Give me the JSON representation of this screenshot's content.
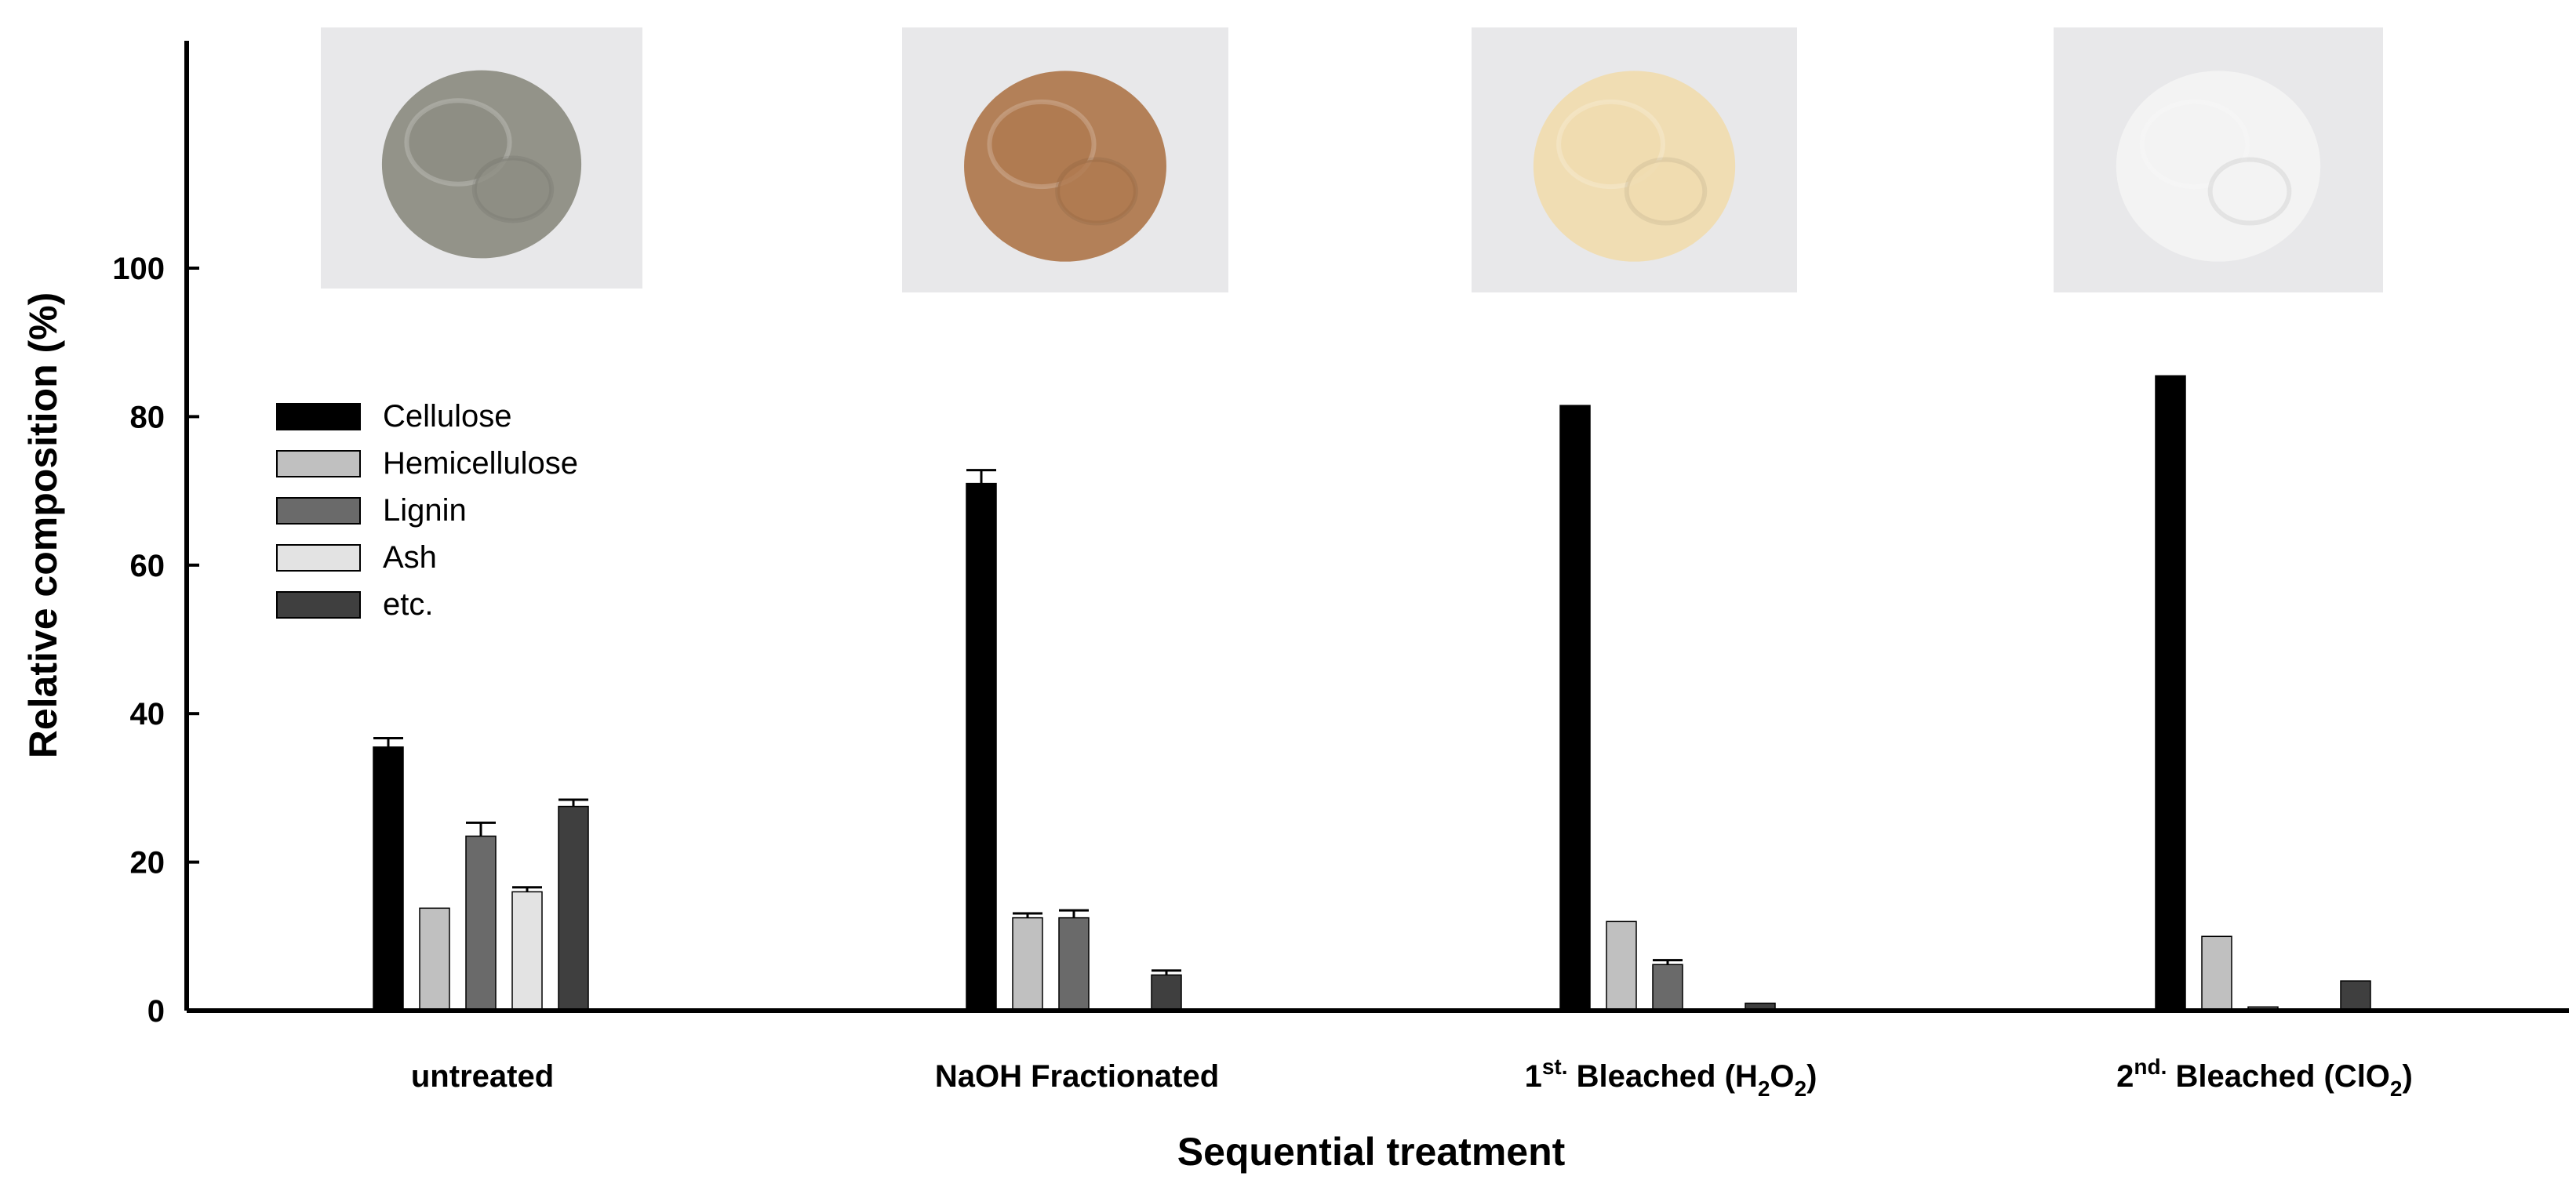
{
  "chart_data": {
    "type": "bar",
    "xlabel": "Sequential treatment",
    "ylabel": "Relative composition (%)",
    "ylim": [
      0,
      100
    ],
    "yticks": [
      "0",
      "20",
      "40",
      "60",
      "80",
      "100"
    ],
    "grid": false,
    "legend_placement": "top-left",
    "categories": [
      {
        "main": "untreated",
        "sup": "",
        "mid": "",
        "sub": "",
        "end": ""
      },
      {
        "main": "NaOH Fractionated",
        "sup": "",
        "mid": "",
        "sub": "",
        "end": ""
      },
      {
        "main": "1",
        "sup": "st.",
        "mid": " Bleached (H",
        "sub": "2",
        "mid2": "O",
        "sub2": "2",
        "end": ")"
      },
      {
        "main": "2",
        "sup": "nd.",
        "mid": " Bleached (ClO",
        "sub": "2",
        "mid2": "",
        "sub2": "",
        "end": ")"
      }
    ],
    "series": [
      {
        "name": "Cellulose",
        "color": "#000000",
        "values": [
          35.5,
          71.0,
          81.5,
          85.5
        ],
        "errors": [
          1.2,
          1.8,
          0,
          0
        ]
      },
      {
        "name": "Hemicellulose",
        "color": "#c0c0c0",
        "values": [
          13.8,
          12.5,
          12.0,
          10.0
        ],
        "errors": [
          0,
          0.6,
          0,
          0
        ]
      },
      {
        "name": "Lignin",
        "color": "#6a6a6a",
        "values": [
          23.5,
          12.5,
          6.2,
          0.5
        ],
        "errors": [
          1.8,
          1.0,
          0.6,
          0
        ]
      },
      {
        "name": "Ash",
        "color": "#e3e3e3",
        "values": [
          16.0,
          0,
          0,
          0
        ],
        "errors": [
          0.6,
          0,
          0,
          0
        ]
      },
      {
        "name": "etc.",
        "color": "#3f3f3f",
        "values": [
          27.5,
          4.8,
          1.0,
          4.0
        ],
        "errors": [
          0.9,
          0.6,
          0,
          0
        ]
      }
    ],
    "images": [
      {
        "name": "untreated-sample-photo",
        "color": "#8e8e84"
      },
      {
        "name": "naoh-sample-photo",
        "color": "#b07a50"
      },
      {
        "name": "h2o2-sample-photo",
        "color": "#f0dcb0"
      },
      {
        "name": "clo2-sample-photo",
        "color": "#f3f3f3"
      }
    ]
  }
}
